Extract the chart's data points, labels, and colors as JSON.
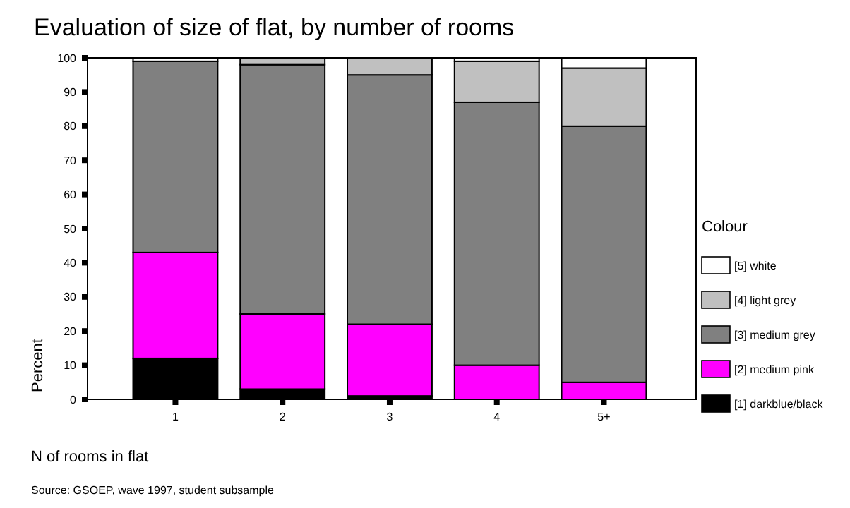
{
  "chart_data": {
    "type": "bar",
    "title": "Evaluation of size of flat, by number of rooms",
    "xlabel": "N of rooms in flat",
    "ylabel": "Percent",
    "legend_title": "Colour",
    "annotations": [
      "Source: GSOEP, wave 1997, student subsample"
    ],
    "categories": [
      "1",
      "2",
      "3",
      "4",
      "5+"
    ],
    "stacked": true,
    "legend": "right",
    "grid": false,
    "ylim": [
      0,
      100
    ],
    "yticks": [
      0,
      10,
      20,
      30,
      40,
      50,
      60,
      70,
      80,
      90,
      100
    ],
    "series": [
      {
        "name": "[1] darkblue/black",
        "color": "#000000",
        "values": [
          12,
          3,
          1,
          0,
          0
        ]
      },
      {
        "name": "[2] medium pink",
        "color": "#ff00ff",
        "values": [
          31,
          22,
          21,
          10,
          5
        ]
      },
      {
        "name": "[3] medium grey",
        "color": "#808080",
        "values": [
          56,
          73,
          73,
          77,
          75
        ]
      },
      {
        "name": "[4] light grey",
        "color": "#c0c0c0",
        "values": [
          0,
          2,
          5,
          12,
          17
        ]
      },
      {
        "name": "[5] white",
        "color": "#ffffff",
        "values": [
          1,
          0,
          0,
          1,
          3
        ]
      }
    ]
  }
}
